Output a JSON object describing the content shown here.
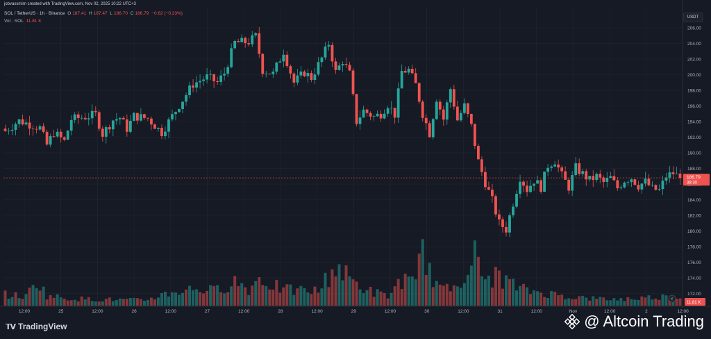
{
  "header": {
    "credit": "jobvassmirn created with TradingView.com, Nov 02, 2025 10:22 UTC+3",
    "symbol": "SOL / TetherUS · 1h · Binance",
    "o_label": "O",
    "o_value": "187.41",
    "h_label": "H",
    "h_value": "187.47",
    "l_label": "L",
    "l_value": "186.70",
    "c_label": "C",
    "c_value": "186.79",
    "change": "−0.62 (−0.33%)",
    "vol_label": "Vol · SOL",
    "vol_value": "11.81 K"
  },
  "price_axis": {
    "unit": "USDT",
    "last_price": "186.79",
    "countdown": "38:30",
    "last_volume": "11.81 K"
  },
  "footer": {
    "brand": "TradingView",
    "watermark": "@ Altcoin Trading"
  },
  "colors": {
    "up": "#26a69a",
    "down": "#ef5350",
    "background": "#161a25",
    "grid": "#232733"
  },
  "chart_data": {
    "type": "candlestick",
    "ylim": [
      170,
      207
    ],
    "yticks": [
      172,
      174,
      176,
      178,
      180,
      182,
      184,
      186,
      188,
      190,
      192,
      194,
      196,
      198,
      200,
      202,
      204,
      206
    ],
    "x_ticks": [
      "12:00",
      "25",
      "12:00",
      "26",
      "12:00",
      "27",
      "12:00",
      "28",
      "12:00",
      "29",
      "12:00",
      "30",
      "12:00",
      "31",
      "12:00",
      "Nov",
      "12:00",
      "2",
      "12:00"
    ],
    "grid": true,
    "close_path": [
      [
        0,
        192.8
      ],
      [
        4,
        194.1
      ],
      [
        10,
        193.2
      ],
      [
        12,
        191.0
      ],
      [
        14,
        192.6
      ],
      [
        17,
        191.5
      ],
      [
        19,
        194.3
      ],
      [
        23,
        194.6
      ],
      [
        26,
        194.9
      ],
      [
        28,
        192.4
      ],
      [
        31,
        194.2
      ],
      [
        33,
        194.5
      ],
      [
        35,
        193.1
      ],
      [
        37,
        194.7
      ],
      [
        41,
        194.4
      ],
      [
        45,
        192.6
      ],
      [
        47,
        194.0
      ],
      [
        50,
        196.1
      ],
      [
        54,
        198.8
      ],
      [
        58,
        199.7
      ],
      [
        61,
        199.0
      ],
      [
        63,
        200.2
      ],
      [
        66,
        204.1
      ],
      [
        70,
        204.2
      ],
      [
        72,
        204.9
      ],
      [
        74,
        200.6
      ],
      [
        77,
        200.1
      ],
      [
        80,
        203.0
      ],
      [
        83,
        199.0
      ],
      [
        86,
        200.3
      ],
      [
        88,
        199.6
      ],
      [
        91,
        202.1
      ],
      [
        93,
        204.0
      ],
      [
        95,
        200.3
      ],
      [
        97,
        201.8
      ],
      [
        99,
        200.1
      ],
      [
        101,
        194.0
      ],
      [
        103,
        195.4
      ],
      [
        106,
        194.6
      ],
      [
        108,
        195.0
      ],
      [
        110,
        196.2
      ],
      [
        112,
        194.9
      ],
      [
        114,
        200.4
      ],
      [
        116,
        200.6
      ],
      [
        118,
        198.7
      ],
      [
        120,
        195.0
      ],
      [
        122,
        192.5
      ],
      [
        124,
        197.0
      ],
      [
        126,
        194.3
      ],
      [
        128,
        198.2
      ],
      [
        130,
        194.2
      ],
      [
        132,
        196.0
      ],
      [
        134,
        193.4
      ],
      [
        136,
        188.9
      ],
      [
        138,
        186.2
      ],
      [
        140,
        183.9
      ],
      [
        142,
        181.0
      ],
      [
        144,
        180.2
      ],
      [
        146,
        183.6
      ],
      [
        148,
        186.9
      ],
      [
        150,
        185.3
      ],
      [
        152,
        186.5
      ],
      [
        154,
        185.6
      ],
      [
        156,
        188.4
      ],
      [
        158,
        189.0
      ],
      [
        160,
        187.1
      ],
      [
        162,
        185.6
      ],
      [
        164,
        188.1
      ],
      [
        166,
        187.3
      ],
      [
        168,
        186.5
      ],
      [
        170,
        187.0
      ],
      [
        172,
        186.2
      ],
      [
        174,
        186.8
      ],
      [
        176,
        185.5
      ],
      [
        178,
        186.5
      ],
      [
        180,
        186.8
      ],
      [
        182,
        185.8
      ],
      [
        184,
        186.3
      ],
      [
        186,
        185.4
      ],
      [
        188,
        185.2
      ],
      [
        190,
        187.0
      ],
      [
        192,
        187.4
      ],
      [
        194,
        186.79
      ]
    ],
    "volume_path": [
      [
        0,
        1.2
      ],
      [
        6,
        1.0
      ],
      [
        9,
        2.8
      ],
      [
        12,
        1.1
      ],
      [
        18,
        0.8
      ],
      [
        25,
        0.7
      ],
      [
        40,
        0.6
      ],
      [
        47,
        1.4
      ],
      [
        55,
        1.9
      ],
      [
        60,
        1.6
      ],
      [
        66,
        2.7
      ],
      [
        70,
        1.8
      ],
      [
        73,
        3.0
      ],
      [
        80,
        1.7
      ],
      [
        90,
        1.6
      ],
      [
        95,
        4.4
      ],
      [
        99,
        2.9
      ],
      [
        104,
        1.7
      ],
      [
        110,
        1.0
      ],
      [
        114,
        2.9
      ],
      [
        118,
        2.2
      ],
      [
        120,
        7.2
      ],
      [
        122,
        3.5
      ],
      [
        126,
        1.6
      ],
      [
        130,
        2.4
      ],
      [
        132,
        3.8
      ],
      [
        135,
        5.4
      ],
      [
        137,
        3.0
      ],
      [
        142,
        3.2
      ],
      [
        148,
        1.8
      ],
      [
        155,
        1.4
      ],
      [
        162,
        1.0
      ],
      [
        168,
        0.8
      ],
      [
        175,
        0.7
      ],
      [
        182,
        0.8
      ],
      [
        188,
        1.0
      ],
      [
        194,
        0.9
      ]
    ],
    "volume_max": 7.5
  }
}
